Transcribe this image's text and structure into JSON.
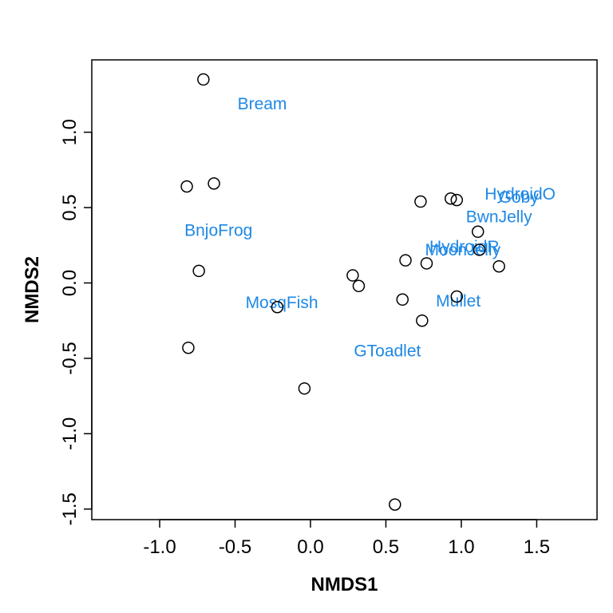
{
  "chart_data": {
    "type": "scatter",
    "title": "",
    "xlabel": "NMDS1",
    "ylabel": "NMDS2",
    "xlim": [
      -1.45,
      1.9
    ],
    "ylim": [
      -1.57,
      1.48
    ],
    "xticks": [
      -1.0,
      -0.5,
      0.0,
      0.5,
      1.0,
      1.5
    ],
    "xtick_labels": [
      "-1.0",
      "-0.5",
      "0.0",
      "0.5",
      "1.0",
      "1.5"
    ],
    "yticks": [
      -1.5,
      -1.0,
      -0.5,
      0.0,
      0.5,
      1.0
    ],
    "ytick_labels": [
      "-1.5",
      "-1.0",
      "-0.5",
      "0.0",
      "0.5",
      "1.0"
    ],
    "grid": false,
    "label_color": "#1e88e5",
    "sites": [
      {
        "x": -0.71,
        "y": 1.35
      },
      {
        "x": -0.82,
        "y": 0.64
      },
      {
        "x": -0.64,
        "y": 0.66
      },
      {
        "x": -0.74,
        "y": 0.08
      },
      {
        "x": -0.81,
        "y": -0.43
      },
      {
        "x": -0.22,
        "y": -0.16
      },
      {
        "x": -0.04,
        "y": -0.7
      },
      {
        "x": 0.28,
        "y": 0.05
      },
      {
        "x": 0.32,
        "y": -0.02
      },
      {
        "x": 0.56,
        "y": -1.47
      },
      {
        "x": 0.61,
        "y": -0.11
      },
      {
        "x": 0.63,
        "y": 0.15
      },
      {
        "x": 0.73,
        "y": 0.54
      },
      {
        "x": 0.74,
        "y": -0.25
      },
      {
        "x": 0.77,
        "y": 0.13
      },
      {
        "x": 0.93,
        "y": 0.56
      },
      {
        "x": 0.97,
        "y": 0.55
      },
      {
        "x": 0.97,
        "y": -0.09
      },
      {
        "x": 1.11,
        "y": 0.34
      },
      {
        "x": 1.12,
        "y": 0.22
      },
      {
        "x": 1.25,
        "y": 0.11
      }
    ],
    "species": [
      {
        "label": "Bream",
        "x": -0.32,
        "y": 1.19
      },
      {
        "label": "BnjoFrog",
        "x": -0.61,
        "y": 0.35
      },
      {
        "label": "MosqFish",
        "x": -0.19,
        "y": -0.13
      },
      {
        "label": "GToadlet",
        "x": 0.51,
        "y": -0.45
      },
      {
        "label": "Mullet",
        "x": 0.98,
        "y": -0.12
      },
      {
        "label": "HydroidO",
        "x": 1.39,
        "y": 0.59
      },
      {
        "label": "Goby",
        "x": 1.38,
        "y": 0.57
      },
      {
        "label": "BwnJelly",
        "x": 1.25,
        "y": 0.44
      },
      {
        "label": "HydroidR",
        "x": 1.02,
        "y": 0.24
      },
      {
        "label": "MoonJelly",
        "x": 1.01,
        "y": 0.22
      }
    ]
  }
}
